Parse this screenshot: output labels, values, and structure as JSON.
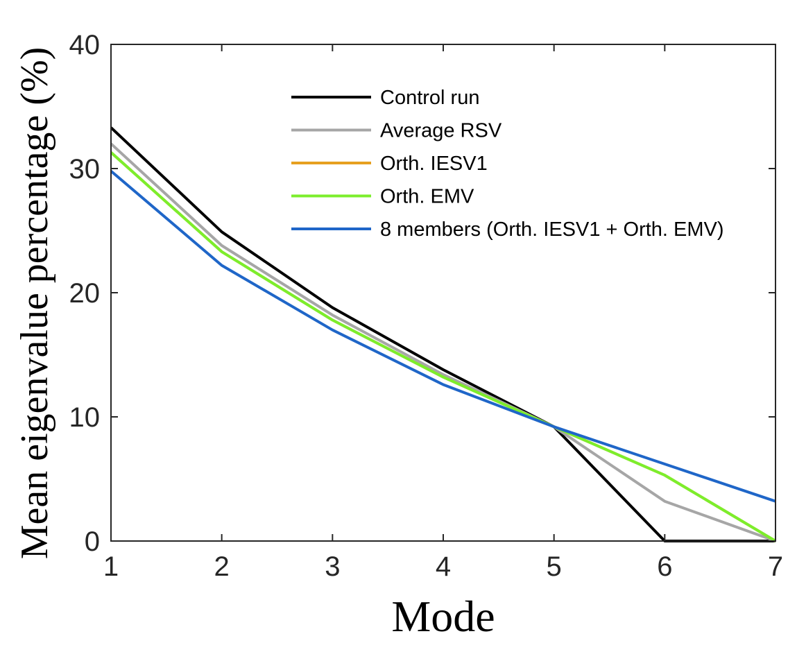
{
  "chart_data": {
    "type": "line",
    "xlabel": "Mode",
    "ylabel": "Mean eigenvalue percentage (%)",
    "x": [
      1,
      2,
      3,
      4,
      5,
      6,
      7
    ],
    "xlim": [
      1,
      7
    ],
    "ylim": [
      0,
      40
    ],
    "xticks": [
      "1",
      "2",
      "3",
      "4",
      "5",
      "6",
      "7"
    ],
    "yticks": [
      "0",
      "10",
      "20",
      "30",
      "40"
    ],
    "grid": false,
    "legend_position": "top-right",
    "series": [
      {
        "name": "Control run",
        "color": "#000000",
        "values": [
          33.3,
          24.9,
          18.8,
          13.8,
          9.2,
          0.0,
          0.0
        ]
      },
      {
        "name": "Average RSV",
        "color": "#a6a6a6",
        "values": [
          32.0,
          23.8,
          18.2,
          13.4,
          9.2,
          3.2,
          0.0
        ]
      },
      {
        "name": "Orth. IESV1",
        "color": "#e6a020",
        "values": [
          31.3,
          23.3,
          17.8,
          13.2,
          9.2,
          5.3,
          0.0
        ]
      },
      {
        "name": "Orth. EMV",
        "color": "#7cee2c",
        "values": [
          31.3,
          23.3,
          17.8,
          13.2,
          9.2,
          5.3,
          0.0
        ]
      },
      {
        "name": "8 members (Orth. IESV1 + Orth. EMV)",
        "color": "#1f66c8",
        "values": [
          29.8,
          22.2,
          17.0,
          12.6,
          9.2,
          6.2,
          3.2
        ]
      }
    ]
  }
}
